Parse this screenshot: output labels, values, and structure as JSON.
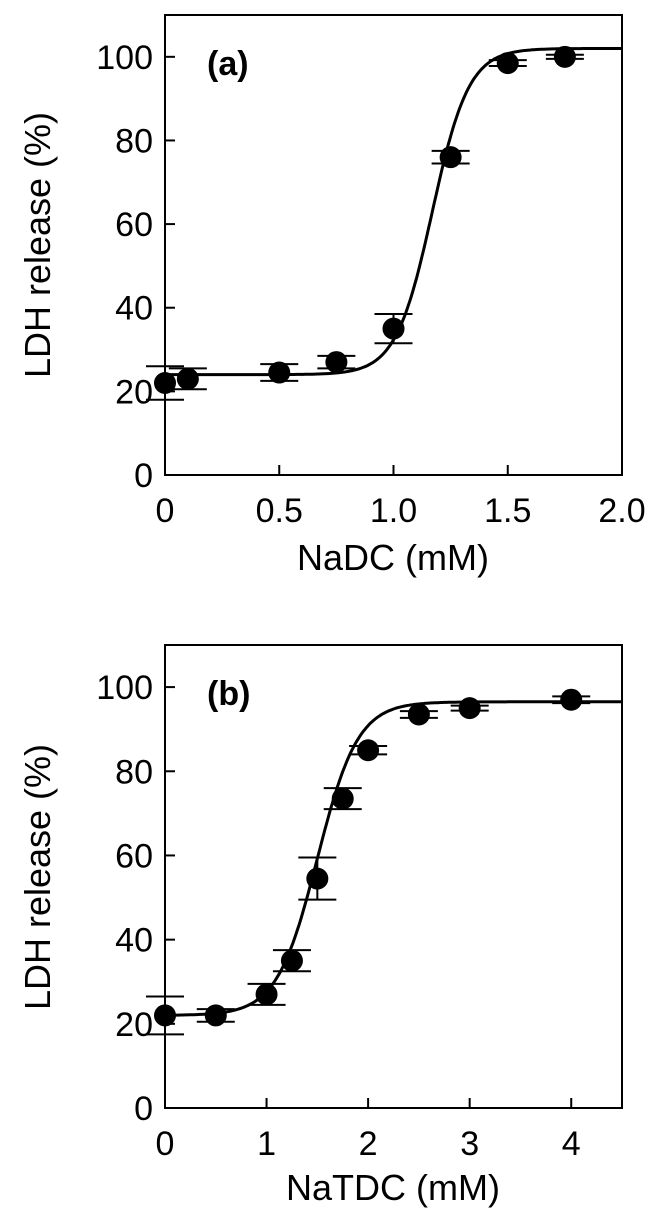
{
  "chart_data": [
    {
      "type": "scatter",
      "panel_label": "(a)",
      "xlabel": "NaDC (mM)",
      "ylabel": "LDH release (%)",
      "xlim": [
        0,
        2.0
      ],
      "ylim": [
        0,
        110
      ],
      "x_ticks": [
        0,
        0.5,
        1.0,
        1.5,
        2.0
      ],
      "x_tick_labels": [
        "0",
        "0.5",
        "1.0",
        "1.5",
        "2.0"
      ],
      "y_ticks": [
        0,
        20,
        40,
        60,
        80,
        100
      ],
      "y_tick_labels": [
        "0",
        "20",
        "40",
        "60",
        "80",
        "100"
      ],
      "grid": false,
      "series": [
        {
          "x": [
            0,
            0.1,
            0.5,
            0.75,
            1.0,
            1.25,
            1.5,
            1.75
          ],
          "y": [
            22,
            23,
            24.5,
            27,
            35,
            76,
            98.5,
            100
          ],
          "error": [
            4,
            2.5,
            2,
            1.5,
            3.5,
            1.5,
            0.7,
            0.5
          ]
        }
      ],
      "fit_curve": {
        "type": "sigmoid",
        "bottom": 24,
        "top": 102,
        "midpoint": 1.17,
        "slope": 0.08
      }
    },
    {
      "type": "scatter",
      "panel_label": "(b)",
      "xlabel": "NaTDC (mM)",
      "ylabel": "LDH release (%)",
      "xlim": [
        0,
        4.5
      ],
      "ylim": [
        0,
        110
      ],
      "x_ticks": [
        0,
        1,
        2,
        3,
        4
      ],
      "x_tick_labels": [
        "0",
        "1",
        "2",
        "3",
        "4"
      ],
      "y_ticks": [
        0,
        20,
        40,
        60,
        80,
        100
      ],
      "y_tick_labels": [
        "0",
        "20",
        "40",
        "60",
        "80",
        "100"
      ],
      "grid": false,
      "series": [
        {
          "x": [
            0,
            0.5,
            1.0,
            1.25,
            1.5,
            1.75,
            2.0,
            2.5,
            3.0,
            4.0
          ],
          "y": [
            22,
            22,
            27,
            35,
            54.5,
            73.5,
            85,
            93.5,
            95,
            97
          ],
          "error": [
            4.5,
            1.5,
            2.5,
            2.5,
            5,
            2.5,
            1,
            0.8,
            0.6,
            0.8
          ]
        }
      ],
      "fit_curve": {
        "type": "sigmoid",
        "bottom": 22,
        "top": 96.5,
        "midpoint": 1.5,
        "slope": 0.2
      }
    }
  ]
}
